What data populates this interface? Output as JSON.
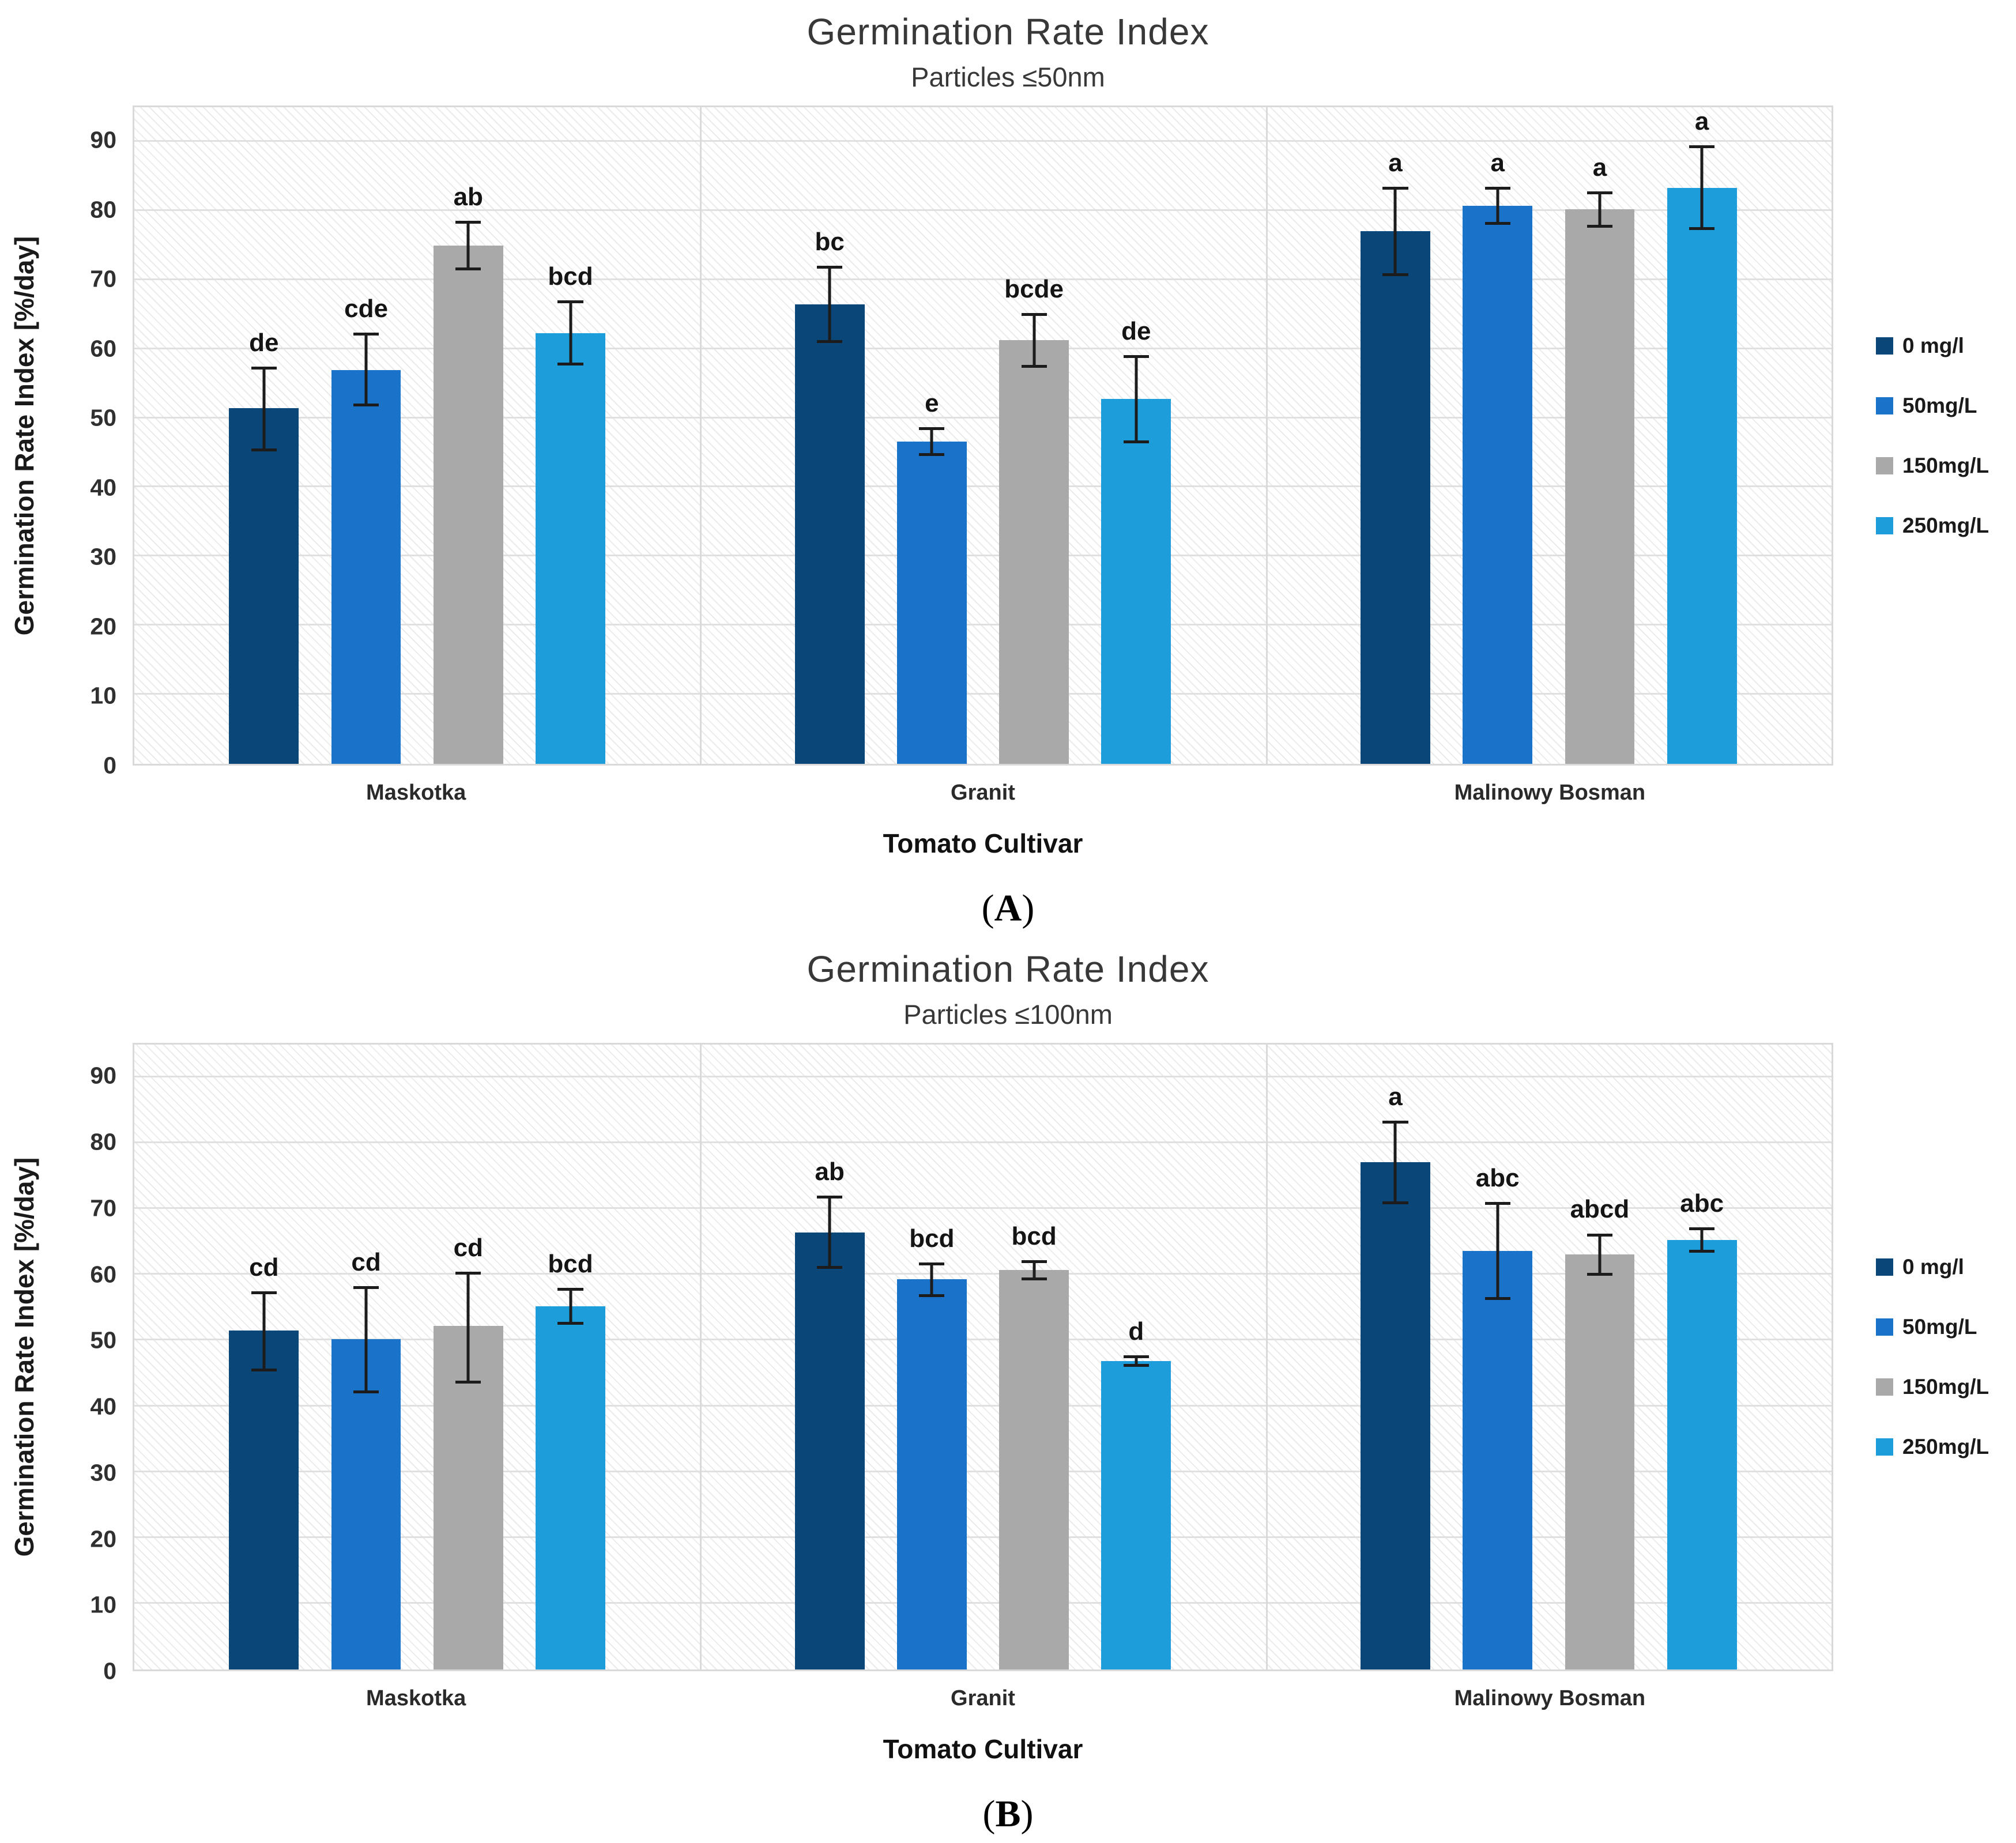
{
  "chart_data": [
    {
      "type": "bar",
      "title": "Germination Rate Index",
      "subtitle": "Particles ≤50nm",
      "y_axis_label": "Germination Rate Index [%/day]",
      "x_axis_label": "Tomato Cultivar",
      "panel_label": {
        "open": "(",
        "letter": "A",
        "close": ")"
      },
      "categories": [
        "Maskotka",
        "Granit",
        "Malinowy Bosman"
      ],
      "y_ticks": [
        0,
        10,
        20,
        30,
        40,
        50,
        60,
        70,
        80,
        90
      ],
      "ylim": [
        0,
        95
      ],
      "grid": true,
      "legend_position": "right",
      "series": [
        {
          "name": "0 mg/l",
          "color": "#0a4678",
          "values": [
            51.5,
            66.5,
            77.1
          ],
          "err_lo": [
            45.2,
            60.9,
            70.6
          ],
          "err_hi": [
            57.5,
            72.1,
            83.5
          ],
          "letters": [
            "de",
            "bc",
            "a"
          ]
        },
        {
          "name": "50mg/L",
          "color": "#1b73c9",
          "values": [
            57.0,
            46.6,
            80.7
          ],
          "err_lo": [
            51.7,
            44.5,
            78.0
          ],
          "err_hi": [
            62.4,
            48.7,
            83.5
          ],
          "letters": [
            "cde",
            "e",
            "a"
          ]
        },
        {
          "name": "150mg/L",
          "color": "#a9a9a9",
          "values": [
            75.0,
            61.3,
            80.2
          ],
          "err_lo": [
            71.4,
            57.3,
            77.6
          ],
          "err_hi": [
            78.6,
            65.2,
            82.8
          ],
          "letters": [
            "ab",
            "bcde",
            "a"
          ]
        },
        {
          "name": "250mg/L",
          "color": "#1d9dd9",
          "values": [
            62.3,
            52.8,
            83.3
          ],
          "err_lo": [
            57.6,
            46.4,
            77.2
          ],
          "err_hi": [
            67.1,
            59.1,
            89.5
          ],
          "letters": [
            "bcd",
            "de",
            "a"
          ]
        }
      ]
    },
    {
      "type": "bar",
      "title": "Germination Rate Index",
      "subtitle": "Particles ≤100nm",
      "y_axis_label": "Germination Rate Index [%/day]",
      "x_axis_label": "Tomato Cultivar",
      "panel_label": {
        "open": "(",
        "letter": "B",
        "close": ")"
      },
      "categories": [
        "Maskotka",
        "Granit",
        "Malinowy Bosman"
      ],
      "y_ticks": [
        0,
        10,
        20,
        30,
        40,
        50,
        60,
        70,
        80,
        90
      ],
      "ylim": [
        0,
        95
      ],
      "grid": true,
      "legend_position": "right",
      "series": [
        {
          "name": "0 mg/l",
          "color": "#0a4678",
          "values": [
            51.5,
            66.4,
            77.1
          ],
          "err_lo": [
            45.3,
            60.9,
            70.7
          ],
          "err_hi": [
            57.5,
            72.0,
            83.4
          ],
          "letters": [
            "cd",
            "ab",
            "a"
          ]
        },
        {
          "name": "50mg/L",
          "color": "#1b73c9",
          "values": [
            50.2,
            59.3,
            63.6
          ],
          "err_lo": [
            42.0,
            56.6,
            56.2
          ],
          "err_hi": [
            58.3,
            61.9,
            71.1
          ],
          "letters": [
            "cd",
            "bcd",
            "abc"
          ]
        },
        {
          "name": "150mg/L",
          "color": "#a9a9a9",
          "values": [
            52.2,
            60.7,
            63.1
          ],
          "err_lo": [
            43.5,
            59.2,
            59.9
          ],
          "err_hi": [
            60.5,
            62.2,
            66.3
          ],
          "letters": [
            "cd",
            "bcd",
            "abcd"
          ]
        },
        {
          "name": "250mg/L",
          "color": "#1d9dd9",
          "values": [
            55.2,
            46.9,
            65.3
          ],
          "err_lo": [
            52.4,
            46.0,
            63.4
          ],
          "err_hi": [
            58.0,
            47.8,
            67.2
          ],
          "letters": [
            "bcd",
            "d",
            "abc"
          ]
        }
      ]
    }
  ]
}
